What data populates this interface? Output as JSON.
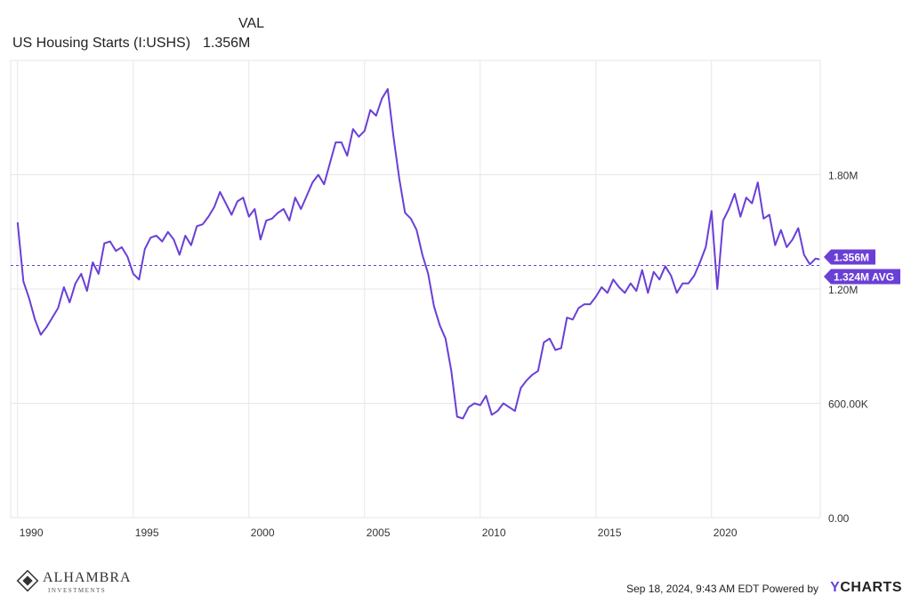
{
  "legend": {
    "column_header": "VAL",
    "series_name": "US Housing Starts (I:USHS)",
    "series_value": "1.356M"
  },
  "colors": {
    "line": "#6a3fd6",
    "avg": "#6a3fd6",
    "grid": "#e6e6e6",
    "axis_text": "#333333"
  },
  "callouts": {
    "last_value": "1.356M",
    "average": "1.324M AVG"
  },
  "footer": {
    "timestamp": "Sep 18, 2024, 9:43 AM EDT Powered by",
    "brand": "CHARTS",
    "brand_y": "Y"
  },
  "logo": {
    "name": "ALHAMBRA",
    "sub": "INVESTMENTS",
    "icon": "diamond-logo-icon"
  },
  "chart_data": {
    "type": "line",
    "series_name": "US Housing Starts (I:USHS)",
    "ylim": [
      0,
      2400000
    ],
    "y_ticks": [
      0,
      600000,
      1200000,
      1800000
    ],
    "y_tick_labels": [
      "0.00",
      "600.00K",
      "1.20M",
      "1.80M"
    ],
    "xlim": [
      1989.7,
      2024.7
    ],
    "x_ticks": [
      1990,
      1995,
      2000,
      2005,
      2010,
      2015,
      2020
    ],
    "x_tick_labels": [
      "1990",
      "1995",
      "2000",
      "2005",
      "2010",
      "2015",
      "2020"
    ],
    "average": 1324000,
    "last_value": 1356000,
    "grid": true,
    "x": [
      1990.0,
      1990.25,
      1990.5,
      1990.75,
      1991.0,
      1991.25,
      1991.5,
      1991.75,
      1992.0,
      1992.25,
      1992.5,
      1992.75,
      1993.0,
      1993.25,
      1993.5,
      1993.75,
      1994.0,
      1994.25,
      1994.5,
      1994.75,
      1995.0,
      1995.25,
      1995.5,
      1995.75,
      1996.0,
      1996.25,
      1996.5,
      1996.75,
      1997.0,
      1997.25,
      1997.5,
      1997.75,
      1998.0,
      1998.25,
      1998.5,
      1998.75,
      1999.0,
      1999.25,
      1999.5,
      1999.75,
      2000.0,
      2000.25,
      2000.5,
      2000.75,
      2001.0,
      2001.25,
      2001.5,
      2001.75,
      2002.0,
      2002.25,
      2002.5,
      2002.75,
      2003.0,
      2003.25,
      2003.5,
      2003.75,
      2004.0,
      2004.25,
      2004.5,
      2004.75,
      2005.0,
      2005.25,
      2005.5,
      2005.75,
      2006.0,
      2006.25,
      2006.5,
      2006.75,
      2007.0,
      2007.25,
      2007.5,
      2007.75,
      2008.0,
      2008.25,
      2008.5,
      2008.75,
      2009.0,
      2009.25,
      2009.5,
      2009.75,
      2010.0,
      2010.25,
      2010.5,
      2010.75,
      2011.0,
      2011.25,
      2011.5,
      2011.75,
      2012.0,
      2012.25,
      2012.5,
      2012.75,
      2013.0,
      2013.25,
      2013.5,
      2013.75,
      2014.0,
      2014.25,
      2014.5,
      2014.75,
      2015.0,
      2015.25,
      2015.5,
      2015.75,
      2016.0,
      2016.25,
      2016.5,
      2016.75,
      2017.0,
      2017.25,
      2017.5,
      2017.75,
      2018.0,
      2018.25,
      2018.5,
      2018.75,
      2019.0,
      2019.25,
      2019.5,
      2019.75,
      2020.0,
      2020.25,
      2020.5,
      2020.75,
      2021.0,
      2021.25,
      2021.5,
      2021.75,
      2022.0,
      2022.25,
      2022.5,
      2022.75,
      2023.0,
      2023.25,
      2023.5,
      2023.75,
      2024.0,
      2024.25,
      2024.5,
      2024.67
    ],
    "y": [
      1550000,
      1240000,
      1150000,
      1040000,
      960000,
      1000000,
      1050000,
      1100000,
      1210000,
      1130000,
      1230000,
      1280000,
      1190000,
      1340000,
      1280000,
      1440000,
      1450000,
      1400000,
      1420000,
      1370000,
      1280000,
      1250000,
      1410000,
      1470000,
      1480000,
      1450000,
      1500000,
      1460000,
      1380000,
      1480000,
      1430000,
      1530000,
      1540000,
      1580000,
      1630000,
      1710000,
      1650000,
      1590000,
      1660000,
      1680000,
      1580000,
      1620000,
      1460000,
      1560000,
      1570000,
      1600000,
      1620000,
      1560000,
      1680000,
      1620000,
      1690000,
      1760000,
      1800000,
      1750000,
      1860000,
      1970000,
      1970000,
      1900000,
      2040000,
      2000000,
      2030000,
      2140000,
      2110000,
      2200000,
      2250000,
      2000000,
      1780000,
      1600000,
      1570000,
      1510000,
      1380000,
      1280000,
      1110000,
      1010000,
      940000,
      770000,
      530000,
      520000,
      580000,
      600000,
      590000,
      640000,
      540000,
      560000,
      600000,
      580000,
      560000,
      680000,
      720000,
      750000,
      770000,
      920000,
      940000,
      880000,
      890000,
      1050000,
      1040000,
      1100000,
      1120000,
      1120000,
      1160000,
      1210000,
      1180000,
      1250000,
      1210000,
      1180000,
      1230000,
      1190000,
      1300000,
      1180000,
      1290000,
      1250000,
      1320000,
      1270000,
      1180000,
      1230000,
      1230000,
      1270000,
      1340000,
      1420000,
      1610000,
      1200000,
      1560000,
      1620000,
      1700000,
      1580000,
      1680000,
      1650000,
      1760000,
      1570000,
      1590000,
      1430000,
      1510000,
      1420000,
      1460000,
      1520000,
      1380000,
      1330000,
      1360000,
      1356000
    ]
  }
}
